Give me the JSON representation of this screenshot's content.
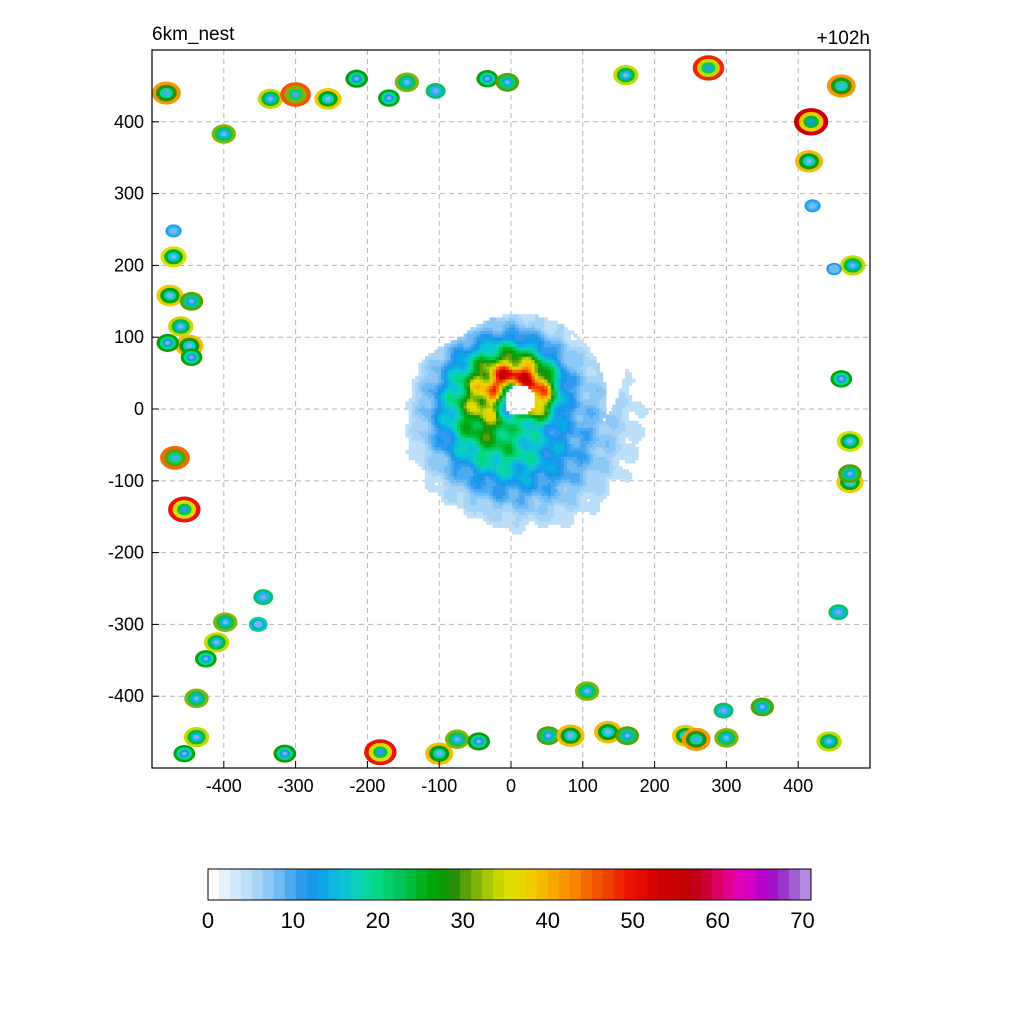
{
  "header": {
    "left_title": "6km_nest",
    "right_title": "+102h"
  },
  "chart_data": {
    "type": "heatmap",
    "title": "",
    "xlabel": "",
    "ylabel": "",
    "xlim": [
      -500,
      500
    ],
    "ylim": [
      -500,
      500
    ],
    "x_ticks": [
      -400,
      -300,
      -200,
      -100,
      0,
      100,
      200,
      300,
      400
    ],
    "y_ticks": [
      400,
      300,
      200,
      100,
      0,
      -100,
      -200,
      -300,
      -400
    ],
    "x_tick_labels": [
      "-400",
      "-300",
      "-200",
      "-100",
      "0",
      "100",
      "200",
      "300",
      "400"
    ],
    "y_tick_labels": [
      "400",
      "300",
      "200",
      "100",
      "0",
      "-100",
      "-200",
      "-300",
      "-400"
    ],
    "grid": true,
    "vortex": {
      "center": [
        10,
        10
      ],
      "eye_radius": 22,
      "eye_value": 0,
      "max_value": 52,
      "max_radius": 40,
      "outer_radius": 190
    },
    "cells": [
      {
        "x": -480,
        "y": 440,
        "v": 42
      },
      {
        "x": -400,
        "y": 383,
        "v": 32
      },
      {
        "x": -335,
        "y": 432,
        "v": 34
      },
      {
        "x": -300,
        "y": 438,
        "v": 46
      },
      {
        "x": -255,
        "y": 432,
        "v": 38
      },
      {
        "x": -215,
        "y": 460,
        "v": 28
      },
      {
        "x": -170,
        "y": 433,
        "v": 26
      },
      {
        "x": -145,
        "y": 455,
        "v": 32
      },
      {
        "x": -105,
        "y": 443,
        "v": 22
      },
      {
        "x": -33,
        "y": 460,
        "v": 26
      },
      {
        "x": -5,
        "y": 455,
        "v": 30
      },
      {
        "x": 160,
        "y": 465,
        "v": 34
      },
      {
        "x": 275,
        "y": 475,
        "v": 48
      },
      {
        "x": 418,
        "y": 400,
        "v": 54
      },
      {
        "x": 460,
        "y": 450,
        "v": 42
      },
      {
        "x": 415,
        "y": 345,
        "v": 40
      },
      {
        "x": -470,
        "y": 248,
        "v": 14
      },
      {
        "x": -470,
        "y": 212,
        "v": 36
      },
      {
        "x": -475,
        "y": 158,
        "v": 38
      },
      {
        "x": -445,
        "y": 150,
        "v": 30
      },
      {
        "x": -460,
        "y": 115,
        "v": 34
      },
      {
        "x": -448,
        "y": 88,
        "v": 40
      },
      {
        "x": -478,
        "y": 92,
        "v": 28
      },
      {
        "x": -445,
        "y": 72,
        "v": 26
      },
      {
        "x": -468,
        "y": -68,
        "v": 44
      },
      {
        "x": -455,
        "y": -140,
        "v": 50
      },
      {
        "x": -398,
        "y": -297,
        "v": 32
      },
      {
        "x": -410,
        "y": -325,
        "v": 34
      },
      {
        "x": -345,
        "y": -262,
        "v": 22
      },
      {
        "x": -352,
        "y": -300,
        "v": 20
      },
      {
        "x": -425,
        "y": -348,
        "v": 26
      },
      {
        "x": -438,
        "y": -403,
        "v": 32
      },
      {
        "x": -438,
        "y": -457,
        "v": 34
      },
      {
        "x": -455,
        "y": -480,
        "v": 26
      },
      {
        "x": -315,
        "y": -480,
        "v": 28
      },
      {
        "x": -182,
        "y": -478,
        "v": 50
      },
      {
        "x": -100,
        "y": -480,
        "v": 40
      },
      {
        "x": -75,
        "y": -460,
        "v": 32
      },
      {
        "x": -45,
        "y": -463,
        "v": 28
      },
      {
        "x": 52,
        "y": -455,
        "v": 30
      },
      {
        "x": 83,
        "y": -455,
        "v": 40
      },
      {
        "x": 106,
        "y": -393,
        "v": 32
      },
      {
        "x": 135,
        "y": -450,
        "v": 40
      },
      {
        "x": 162,
        "y": -455,
        "v": 30
      },
      {
        "x": 243,
        "y": -455,
        "v": 38
      },
      {
        "x": 258,
        "y": -460,
        "v": 42
      },
      {
        "x": 300,
        "y": -458,
        "v": 32
      },
      {
        "x": 296,
        "y": -420,
        "v": 22
      },
      {
        "x": 350,
        "y": -415,
        "v": 30
      },
      {
        "x": 443,
        "y": -463,
        "v": 34
      },
      {
        "x": 456,
        "y": -283,
        "v": 22
      },
      {
        "x": 472,
        "y": -45,
        "v": 36
      },
      {
        "x": 472,
        "y": -102,
        "v": 38
      },
      {
        "x": 472,
        "y": -90,
        "v": 30
      },
      {
        "x": 476,
        "y": 200,
        "v": 34
      },
      {
        "x": 460,
        "y": 42,
        "v": 26
      },
      {
        "x": 420,
        "y": 283,
        "v": 14
      },
      {
        "x": 450,
        "y": 195,
        "v": 12
      }
    ]
  },
  "colorbar": {
    "min": 0,
    "max": 71,
    "tick_values": [
      0,
      10,
      20,
      30,
      40,
      50,
      60,
      70
    ],
    "tick_labels": [
      "0",
      "10",
      "20",
      "30",
      "40",
      "50",
      "60",
      "70"
    ],
    "colors": [
      "#ffffff",
      "#e6f2fc",
      "#d2e9fa",
      "#bddff8",
      "#a6d4f7",
      "#8cc8f5",
      "#6fbaf3",
      "#4caaf1",
      "#2f9bed",
      "#1896ea",
      "#0da6e8",
      "#0fb6e0",
      "#0cc4d4",
      "#0ccfbd",
      "#08d79c",
      "#06d783",
      "#04cd6c",
      "#03c35a",
      "#00bb3c",
      "#00b01e",
      "#03a40a",
      "#0c9a0b",
      "#2a8f08",
      "#56a10a",
      "#80b508",
      "#a6c904",
      "#c7d700",
      "#dddd00",
      "#e7d700",
      "#efcb00",
      "#f4bb00",
      "#f8a800",
      "#f99700",
      "#f98300",
      "#f56a00",
      "#f25500",
      "#f04000",
      "#ee2800",
      "#ea1400",
      "#e30a00",
      "#d70500",
      "#cc0000",
      "#c80000",
      "#c20000",
      "#bf0016",
      "#cc0038",
      "#db0063",
      "#e40090",
      "#e000b5",
      "#d100c4",
      "#b800c8",
      "#a412c7",
      "#9938c6",
      "#a060d0",
      "#b38ae0"
    ]
  }
}
